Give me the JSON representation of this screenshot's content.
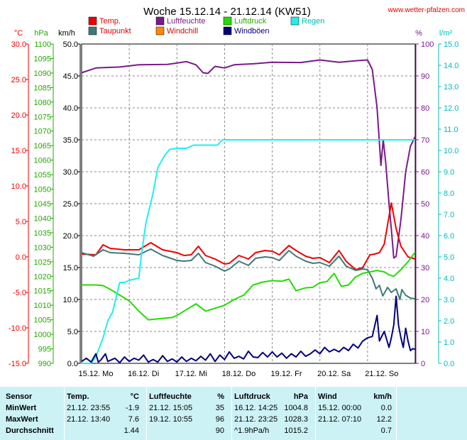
{
  "title": "Woche 15.12.14 - 21.12.14 (KW51)",
  "source": "www.wetter-pfalzen.com",
  "colors": {
    "temp": "#ee0000",
    "dew": "#3f7a78",
    "hum": "#7a1a8a",
    "chill": "#ff8800",
    "press": "#22dd00",
    "gust": "#00007a",
    "rain": "#22eeee",
    "axis_temp": "#ee0000",
    "axis_press": "#22aa00",
    "axis_wind": "#000000",
    "axis_hum": "#7a1a8a",
    "axis_rain": "#00bbbb",
    "table_bg": "#ccf2f6"
  },
  "chart_data": {
    "type": "line",
    "title": "Woche 15.12.14 - 21.12.14 (KW51)",
    "grid": true,
    "legend_position": "top",
    "legend": [
      {
        "key": "temp",
        "label": "Temp."
      },
      {
        "key": "dew",
        "label": "Taupunkt"
      },
      {
        "key": "hum",
        "label": "Luftfeuchte"
      },
      {
        "key": "chill",
        "label": "Windchill"
      },
      {
        "key": "press",
        "label": "Luftdruck"
      },
      {
        "key": "gust",
        "label": "Windböen"
      },
      {
        "key": "rain",
        "label": "Regen"
      }
    ],
    "axes": {
      "temp": {
        "unit": "°C",
        "min": -15,
        "max": 30,
        "ticks": [
          "30.0",
          "25.0",
          "20.0",
          "15.0",
          "10.0",
          "5.0",
          "0.0",
          "-5.0",
          "-10.0",
          "-15.0"
        ]
      },
      "press": {
        "unit": "hPa",
        "min": 990,
        "max": 1100,
        "ticks": [
          "1100",
          "1095",
          "1090",
          "1085",
          "1080",
          "1075",
          "1070",
          "1065",
          "1060",
          "1055",
          "1050",
          "1045",
          "1040",
          "1035",
          "1030",
          "1025",
          "1020",
          "1015",
          "1010",
          "1005",
          "1000",
          "995",
          "990"
        ]
      },
      "wind": {
        "unit": "km/h",
        "min": 0,
        "max": 50,
        "ticks": [
          "50.0",
          "45.0",
          "40.0",
          "35.0",
          "30.0",
          "25.0",
          "20.0",
          "15.0",
          "10.0",
          "5.0",
          "0.0"
        ]
      },
      "hum": {
        "unit": "%",
        "min": 0,
        "max": 100,
        "ticks": [
          "100",
          "90",
          "80",
          "70",
          "60",
          "50",
          "40",
          "30",
          "20",
          "10",
          "0"
        ]
      },
      "rain": {
        "unit": "l/m²",
        "min": 0,
        "max": 15,
        "ticks": [
          "15.0",
          "14.0",
          "13.0",
          "12.0",
          "11.0",
          "10.0",
          "9.0",
          "8.0",
          "7.0",
          "6.0",
          "5.0",
          "4.0",
          "3.0",
          "2.0",
          "1.0",
          "0.0"
        ]
      }
    },
    "x_range_days": [
      0,
      7
    ],
    "x_labels": [
      "15.12. Mo",
      "16.12. Di",
      "17.12. Mi",
      "18.12. Do",
      "19.12. Fr",
      "20.12. Sa",
      "21.12. So"
    ],
    "series": [
      {
        "key": "hum",
        "axis": "hum",
        "points": [
          [
            0,
            91
          ],
          [
            0.3,
            92.5
          ],
          [
            0.8,
            92.8
          ],
          [
            1.2,
            93.5
          ],
          [
            1.8,
            93.6
          ],
          [
            2.2,
            94.5
          ],
          [
            2.4,
            93.5
          ],
          [
            2.55,
            91
          ],
          [
            2.65,
            90.8
          ],
          [
            2.8,
            93
          ],
          [
            3.0,
            92.5
          ],
          [
            3.2,
            93.5
          ],
          [
            3.6,
            93.8
          ],
          [
            4.0,
            94.3
          ],
          [
            4.6,
            94.2
          ],
          [
            5.0,
            95
          ],
          [
            5.4,
            94.3
          ],
          [
            5.8,
            94.8
          ],
          [
            6.0,
            95
          ],
          [
            6.1,
            92
          ],
          [
            6.2,
            80
          ],
          [
            6.28,
            62
          ],
          [
            6.33,
            70
          ],
          [
            6.38,
            63
          ],
          [
            6.45,
            50
          ],
          [
            6.5,
            42
          ],
          [
            6.55,
            33
          ],
          [
            6.6,
            33.5
          ],
          [
            6.7,
            45
          ],
          [
            6.8,
            60
          ],
          [
            6.9,
            68
          ],
          [
            7.0,
            71
          ]
        ]
      },
      {
        "key": "temp",
        "axis": "temp",
        "points": [
          [
            0,
            0.4
          ],
          [
            0.3,
            0.3
          ],
          [
            0.45,
            1.7
          ],
          [
            0.6,
            1.2
          ],
          [
            0.9,
            1.0
          ],
          [
            1.2,
            1.0
          ],
          [
            1.45,
            2.0
          ],
          [
            1.7,
            1.0
          ],
          [
            2.0,
            0.6
          ],
          [
            2.15,
            0.2
          ],
          [
            2.3,
            0.3
          ],
          [
            2.45,
            1.5
          ],
          [
            2.6,
            0.2
          ],
          [
            2.8,
            -0.3
          ],
          [
            3.0,
            -1.0
          ],
          [
            3.1,
            -0.9
          ],
          [
            3.3,
            0.2
          ],
          [
            3.5,
            -0.3
          ],
          [
            3.65,
            0.6
          ],
          [
            3.85,
            0.9
          ],
          [
            4.0,
            0.8
          ],
          [
            4.15,
            0.3
          ],
          [
            4.35,
            1.6
          ],
          [
            4.5,
            0.9
          ],
          [
            4.7,
            0.1
          ],
          [
            4.85,
            -0.2
          ],
          [
            5.0,
            -0.1
          ],
          [
            5.2,
            -0.8
          ],
          [
            5.4,
            0.9
          ],
          [
            5.55,
            -0.6
          ],
          [
            5.75,
            -1.8
          ],
          [
            5.9,
            -1.5
          ],
          [
            6.05,
            0.3
          ],
          [
            6.15,
            0.4
          ],
          [
            6.25,
            0.6
          ],
          [
            6.35,
            1.8
          ],
          [
            6.5,
            7.6
          ],
          [
            6.6,
            4.0
          ],
          [
            6.7,
            1.5
          ],
          [
            6.85,
            0.0
          ],
          [
            7.0,
            -0.3
          ]
        ]
      },
      {
        "key": "dew",
        "axis": "temp",
        "points": [
          [
            0,
            0.6
          ],
          [
            0.25,
            0.1
          ],
          [
            0.45,
            1.0
          ],
          [
            0.6,
            0.6
          ],
          [
            0.9,
            0.5
          ],
          [
            1.2,
            0.3
          ],
          [
            1.45,
            1.1
          ],
          [
            1.7,
            0.2
          ],
          [
            2.0,
            -0.5
          ],
          [
            2.15,
            -0.6
          ],
          [
            2.3,
            -0.5
          ],
          [
            2.45,
            0.5
          ],
          [
            2.6,
            -0.8
          ],
          [
            2.8,
            -1.3
          ],
          [
            3.0,
            -2.0
          ],
          [
            3.1,
            -1.7
          ],
          [
            3.3,
            -0.6
          ],
          [
            3.5,
            -1.2
          ],
          [
            3.65,
            -0.2
          ],
          [
            3.85,
            0.0
          ],
          [
            4.0,
            -0.1
          ],
          [
            4.15,
            -0.5
          ],
          [
            4.35,
            0.9
          ],
          [
            4.5,
            0.1
          ],
          [
            4.7,
            -0.6
          ],
          [
            4.85,
            -0.9
          ],
          [
            5.0,
            -0.8
          ],
          [
            5.2,
            -1.3
          ],
          [
            5.4,
            0.1
          ],
          [
            5.55,
            -1.3
          ],
          [
            5.75,
            -1.9
          ],
          [
            5.9,
            -1.7
          ],
          [
            6.0,
            -1.8
          ],
          [
            6.1,
            -3.0
          ],
          [
            6.18,
            -4.5
          ],
          [
            6.25,
            -4.0
          ],
          [
            6.32,
            -5.5
          ],
          [
            6.42,
            -4.3
          ],
          [
            6.5,
            -5.0
          ],
          [
            6.6,
            -4.5
          ],
          [
            6.68,
            -6.0
          ],
          [
            6.72,
            -4.6
          ],
          [
            6.8,
            -5.4
          ],
          [
            6.9,
            -5.8
          ],
          [
            7.0,
            -5.9
          ]
        ]
      },
      {
        "key": "press",
        "axis": "press",
        "points": [
          [
            0,
            1017
          ],
          [
            0.3,
            1017
          ],
          [
            0.45,
            1016.8
          ],
          [
            0.6,
            1015.5
          ],
          [
            0.8,
            1013.5
          ],
          [
            1.0,
            1011.5
          ],
          [
            1.2,
            1008
          ],
          [
            1.4,
            1005
          ],
          [
            1.7,
            1005.5
          ],
          [
            1.9,
            1005.8
          ],
          [
            2.0,
            1006.5
          ],
          [
            2.2,
            1008.5
          ],
          [
            2.4,
            1010.5
          ],
          [
            2.6,
            1008
          ],
          [
            2.8,
            1009
          ],
          [
            3.0,
            1010
          ],
          [
            3.2,
            1012
          ],
          [
            3.4,
            1013.5
          ],
          [
            3.6,
            1017
          ],
          [
            3.8,
            1018
          ],
          [
            4.0,
            1018.5
          ],
          [
            4.2,
            1018.3
          ],
          [
            4.35,
            1019
          ],
          [
            4.5,
            1015
          ],
          [
            4.7,
            1016
          ],
          [
            4.85,
            1016.2
          ],
          [
            5.0,
            1017.8
          ],
          [
            5.15,
            1018.2
          ],
          [
            5.3,
            1021
          ],
          [
            5.45,
            1016.5
          ],
          [
            5.6,
            1017
          ],
          [
            5.75,
            1019.8
          ],
          [
            5.9,
            1021
          ],
          [
            6.05,
            1021.5
          ],
          [
            6.2,
            1022
          ],
          [
            6.35,
            1021.5
          ],
          [
            6.45,
            1020.5
          ],
          [
            6.55,
            1020
          ],
          [
            6.7,
            1022.3
          ],
          [
            6.85,
            1025
          ],
          [
            7.0,
            1028.3
          ]
        ]
      },
      {
        "key": "rain",
        "axis": "rain",
        "points": [
          [
            0,
            0
          ],
          [
            0.2,
            0
          ],
          [
            0.3,
            0.3
          ],
          [
            0.45,
            1.2
          ],
          [
            0.55,
            2.0
          ],
          [
            0.65,
            2.4
          ],
          [
            0.8,
            3.8
          ],
          [
            0.9,
            3.8
          ],
          [
            1.0,
            3.9
          ],
          [
            1.2,
            4.0
          ],
          [
            1.25,
            5.0
          ],
          [
            1.35,
            6.6
          ],
          [
            1.5,
            8.0
          ],
          [
            1.6,
            9.2
          ],
          [
            1.75,
            9.8
          ],
          [
            1.85,
            10.05
          ],
          [
            2.0,
            10.1
          ],
          [
            2.2,
            10.1
          ],
          [
            2.35,
            10.25
          ],
          [
            2.5,
            10.25
          ],
          [
            2.85,
            10.25
          ],
          [
            2.95,
            10.5
          ],
          [
            3.5,
            10.5
          ],
          [
            5.0,
            10.5
          ],
          [
            6.5,
            10.5
          ],
          [
            7.0,
            10.5
          ]
        ]
      },
      {
        "key": "gust",
        "axis": "wind",
        "points": [
          [
            0,
            0.3
          ],
          [
            0.1,
            0.8
          ],
          [
            0.2,
            0.2
          ],
          [
            0.3,
            1.5
          ],
          [
            0.35,
            0.2
          ],
          [
            0.4,
            0.5
          ],
          [
            0.5,
            1.5
          ],
          [
            0.55,
            0.3
          ],
          [
            0.7,
            0.8
          ],
          [
            0.8,
            0.1
          ],
          [
            0.9,
            1.0
          ],
          [
            1.0,
            0.3
          ],
          [
            1.1,
            0.8
          ],
          [
            1.2,
            0.5
          ],
          [
            1.3,
            1.3
          ],
          [
            1.4,
            0.2
          ],
          [
            1.5,
            0.6
          ],
          [
            1.6,
            0.2
          ],
          [
            1.7,
            1.2
          ],
          [
            1.8,
            0.3
          ],
          [
            1.9,
            0.7
          ],
          [
            2.0,
            0.2
          ],
          [
            2.1,
            1.0
          ],
          [
            2.2,
            0.3
          ],
          [
            2.3,
            0.8
          ],
          [
            2.4,
            0.4
          ],
          [
            2.5,
            1.1
          ],
          [
            2.6,
            0.5
          ],
          [
            2.7,
            1.5
          ],
          [
            2.8,
            0.3
          ],
          [
            2.9,
            1.3
          ],
          [
            3.0,
            0.6
          ],
          [
            3.1,
            1.8
          ],
          [
            3.2,
            0.8
          ],
          [
            3.3,
            1.1
          ],
          [
            3.4,
            0.7
          ],
          [
            3.5,
            1.9
          ],
          [
            3.6,
            1.0
          ],
          [
            3.7,
            0.9
          ],
          [
            3.8,
            1.7
          ],
          [
            3.9,
            1.0
          ],
          [
            4.0,
            1.8
          ],
          [
            4.1,
            1.0
          ],
          [
            4.2,
            1.6
          ],
          [
            4.3,
            0.8
          ],
          [
            4.4,
            1.5
          ],
          [
            4.5,
            1.0
          ],
          [
            4.6,
            1.9
          ],
          [
            4.7,
            1.1
          ],
          [
            4.8,
            1.5
          ],
          [
            4.9,
            2.1
          ],
          [
            5.0,
            1.5
          ],
          [
            5.1,
            2.5
          ],
          [
            5.2,
            1.8
          ],
          [
            5.3,
            2.2
          ],
          [
            5.4,
            1.8
          ],
          [
            5.5,
            2.5
          ],
          [
            5.6,
            2.0
          ],
          [
            5.7,
            3.0
          ],
          [
            5.8,
            2.4
          ],
          [
            5.9,
            3.5
          ],
          [
            6.0,
            4.0
          ],
          [
            6.1,
            4.2
          ],
          [
            6.2,
            7.5
          ],
          [
            6.25,
            3.5
          ],
          [
            6.35,
            5.0
          ],
          [
            6.45,
            2.5
          ],
          [
            6.5,
            4.0
          ],
          [
            6.55,
            6.0
          ],
          [
            6.6,
            10.5
          ],
          [
            6.65,
            6.0
          ],
          [
            6.7,
            4.0
          ],
          [
            6.75,
            2.5
          ],
          [
            6.8,
            5.5
          ],
          [
            6.85,
            3.5
          ],
          [
            6.9,
            2.0
          ],
          [
            6.95,
            2.3
          ],
          [
            7.0,
            2.2
          ]
        ]
      }
    ]
  },
  "table": {
    "headers": [
      "Sensor",
      "Temp.",
      "°C",
      "Luftfeuchte",
      "%",
      "Luftdruck",
      "hPa",
      "Wind",
      "km/h"
    ],
    "rows": [
      [
        "MinWert",
        "21.12.  23:55",
        "-1.9",
        "21.12.  15:05",
        "35",
        "16.12.  14:25",
        "1004.8",
        "15.12.  00:00",
        "0.0"
      ],
      [
        "MaxWert",
        "21.12.  13:40",
        "7.6",
        "19.12.  10:55",
        "96",
        "21.12.  23:25",
        "1028.3",
        "21.12.  07:10",
        "12.2"
      ],
      [
        "Durchschnitt",
        "",
        "1.44",
        "",
        "90",
        "^1.9hPa/h",
        "1015.2",
        "",
        "0.7"
      ]
    ]
  }
}
